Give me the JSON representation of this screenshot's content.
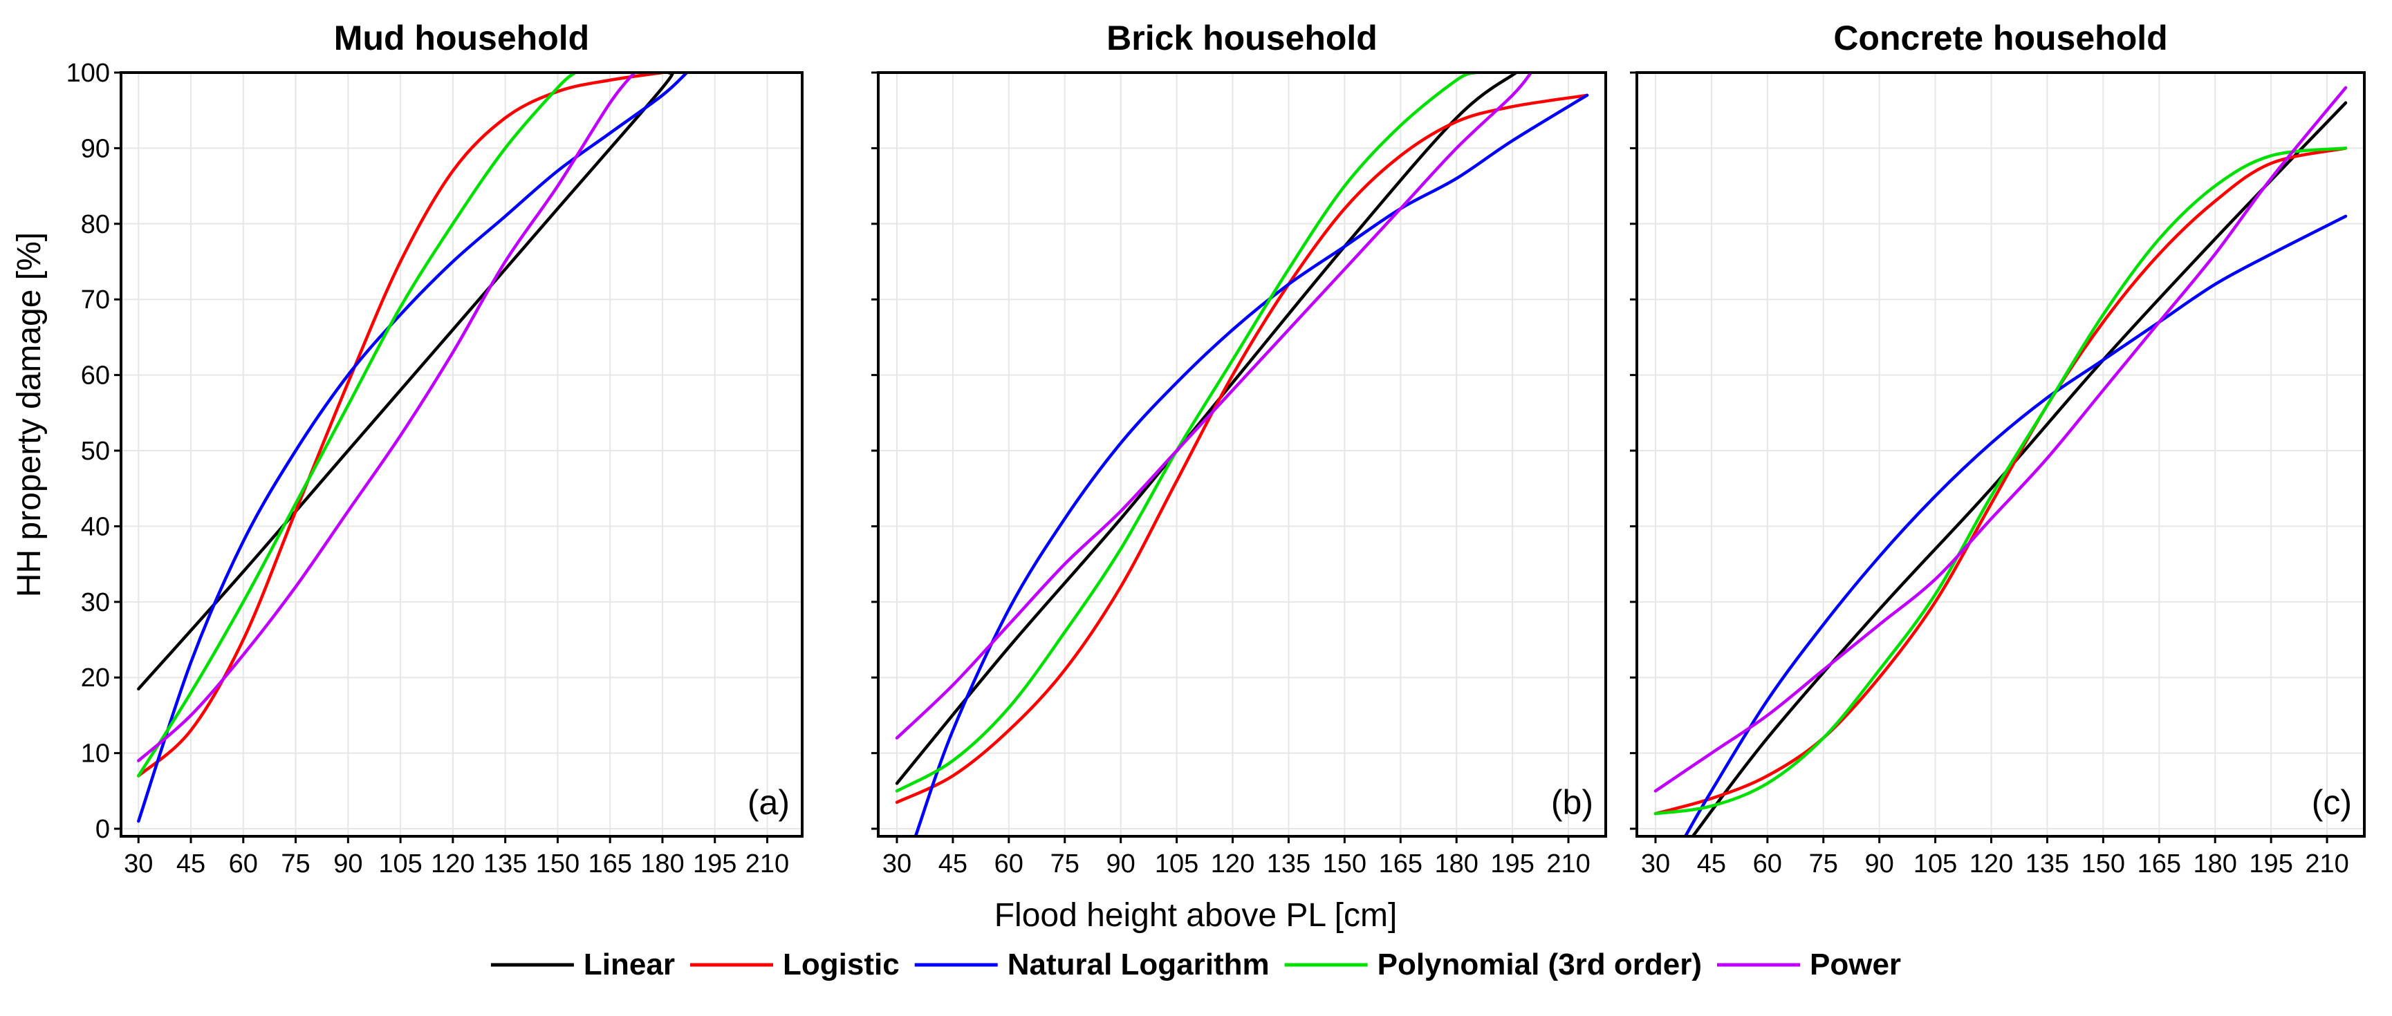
{
  "chart_data": {
    "type": "line",
    "ylabel": "HH property damage [%]",
    "xlabel": "Flood height above PL [cm]",
    "xlim": [
      25,
      220
    ],
    "ylim": [
      -1,
      100
    ],
    "x_ticks": [
      30,
      45,
      60,
      75,
      90,
      105,
      120,
      135,
      150,
      165,
      180,
      195,
      210
    ],
    "y_ticks": [
      0,
      10,
      20,
      30,
      40,
      50,
      60,
      70,
      80,
      90,
      100
    ],
    "grid": true,
    "legend_position": "bottom-center",
    "legend": [
      {
        "name": "Linear",
        "color": "#000000"
      },
      {
        "name": "Logistic",
        "color": "#ff0000"
      },
      {
        "name": "Natural Logarithm",
        "color": "#0000ff"
      },
      {
        "name": "Polynomial (3rd order)",
        "color": "#00e000"
      },
      {
        "name": "Power",
        "color": "#c000ff"
      }
    ],
    "panels": [
      {
        "title": "Mud household",
        "tag": "(a)",
        "series": [
          {
            "name": "Linear",
            "x": [
              30,
              60,
              90,
              120,
              150,
              180,
              182
            ],
            "y": [
              18.5,
              34,
              50,
              66,
              82,
              98,
              100
            ]
          },
          {
            "name": "Logistic",
            "x": [
              30,
              45,
              60,
              75,
              90,
              105,
              120,
              135,
              150,
              165,
              180
            ],
            "y": [
              7,
              13,
              25,
              42,
              59,
              75,
              87,
              94,
              97.5,
              99,
              100
            ]
          },
          {
            "name": "Natural Logarithm",
            "x": [
              30,
              45,
              60,
              75,
              90,
              105,
              120,
              135,
              150,
              165,
              180,
              187
            ],
            "y": [
              1,
              22,
              38,
              50,
              60,
              68,
              75,
              81,
              87,
              92,
              97,
              100
            ]
          },
          {
            "name": "Polynomial (3rd order)",
            "x": [
              30,
              45,
              60,
              75,
              90,
              105,
              120,
              135,
              150,
              155
            ],
            "y": [
              7,
              18,
              30,
              43,
              56,
              69,
              80,
              90,
              98,
              100
            ]
          },
          {
            "name": "Power",
            "x": [
              30,
              45,
              60,
              75,
              90,
              105,
              120,
              135,
              150,
              165,
              172
            ],
            "y": [
              9,
              15,
              23,
              32,
              42,
              52,
              63,
              75,
              85,
              96,
              100
            ]
          }
        ]
      },
      {
        "title": "Brick household",
        "tag": "(b)",
        "series": [
          {
            "name": "Linear",
            "x": [
              30,
              60,
              90,
              120,
              150,
              180,
              196
            ],
            "y": [
              6,
              24,
              41,
              59,
              77,
              94,
              100
            ]
          },
          {
            "name": "Logistic",
            "x": [
              30,
              45,
              60,
              75,
              90,
              105,
              120,
              135,
              150,
              165,
              180,
              195,
              215
            ],
            "y": [
              3.5,
              7,
              13,
              21,
              32,
              46,
              60,
              72,
              82,
              89,
              93.5,
              95.5,
              97
            ]
          },
          {
            "name": "Natural Logarithm",
            "x": [
              35,
              45,
              60,
              75,
              90,
              105,
              120,
              135,
              150,
              165,
              180,
              195,
              215
            ],
            "y": [
              -1,
              13,
              29,
              41,
              51,
              59,
              66,
              72,
              77,
              82,
              86,
              91,
              97
            ]
          },
          {
            "name": "Polynomial (3rd order)",
            "x": [
              30,
              45,
              60,
              75,
              90,
              105,
              120,
              135,
              150,
              165,
              180,
              185
            ],
            "y": [
              5,
              9,
              16,
              26,
              37,
              50,
              62,
              74,
              85,
              93,
              99,
              100
            ]
          },
          {
            "name": "Power",
            "x": [
              30,
              45,
              60,
              75,
              90,
              105,
              120,
              135,
              150,
              165,
              180,
              195,
              200
            ],
            "y": [
              12,
              19,
              27,
              35,
              42,
              50,
              58,
              66,
              74,
              82,
              90,
              97,
              100
            ]
          }
        ]
      },
      {
        "title": "Concrete household",
        "tag": "(c)",
        "series": [
          {
            "name": "Linear",
            "x": [
              40,
              60,
              90,
              120,
              150,
              180,
              215
            ],
            "y": [
              -1,
              12,
              29,
              45,
              62,
              78,
              96
            ]
          },
          {
            "name": "Logistic",
            "x": [
              30,
              45,
              60,
              75,
              90,
              105,
              120,
              135,
              150,
              165,
              180,
              195,
              215
            ],
            "y": [
              2,
              4,
              7,
              12,
              20,
              30,
              43,
              56,
              67,
              76,
              83,
              88,
              90
            ]
          },
          {
            "name": "Natural Logarithm",
            "x": [
              38,
              45,
              60,
              75,
              90,
              105,
              120,
              135,
              150,
              165,
              180,
              195,
              215
            ],
            "y": [
              -1,
              5,
              17,
              27,
              36,
              44,
              51,
              57,
              62,
              67,
              72,
              76,
              81
            ]
          },
          {
            "name": "Polynomial (3rd order)",
            "x": [
              30,
              45,
              60,
              75,
              90,
              105,
              120,
              135,
              150,
              165,
              180,
              195,
              215
            ],
            "y": [
              2,
              3,
              6,
              12,
              21,
              31,
              44,
              56,
              68,
              78,
              85,
              89,
              90
            ]
          },
          {
            "name": "Power",
            "x": [
              30,
              45,
              60,
              75,
              90,
              105,
              120,
              135,
              150,
              165,
              180,
              195,
              215
            ],
            "y": [
              5,
              10,
              15,
              21,
              27,
              33,
              41,
              49,
              58,
              67,
              76,
              86,
              98
            ]
          }
        ]
      }
    ]
  }
}
